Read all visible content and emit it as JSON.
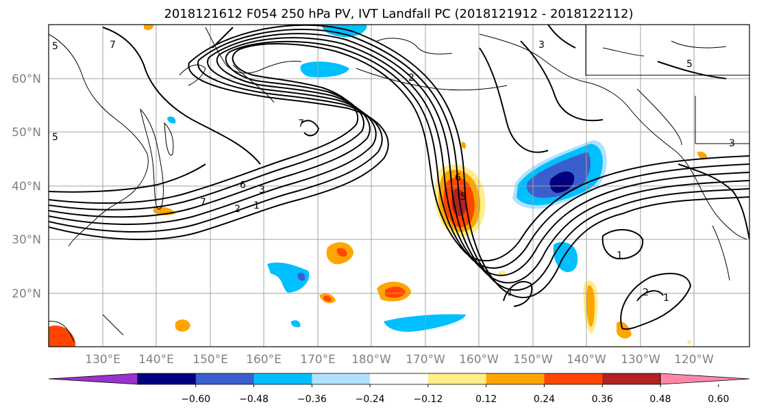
{
  "title": "2018121612 F054 250 hPa PV, IVT Landfall PC (2018121912 - 2018122112)",
  "lat_labels": [
    "60°N",
    "50°N",
    "40°N",
    "30°N",
    "20°N"
  ],
  "lon_labels": [
    "130°E",
    "140°E",
    "150°E",
    "160°E",
    "170°E",
    "180°W",
    "170°W",
    "160°W",
    "150°W",
    "140°W",
    "130°W",
    "120°W"
  ],
  "colorbar": {
    "colors": [
      "#9933cc",
      "#000080",
      "#3a5fcd",
      "#00bfff",
      "#b0e2ff",
      "#ffffff",
      "#ffee88",
      "#ffa500",
      "#ff4500",
      "#b22222",
      "#ff88aa"
    ],
    "tick_labels": [
      "−0.60",
      "−0.48",
      "−0.36",
      "−0.24",
      "−0.12",
      "0.12",
      "0.24",
      "0.36",
      "0.48",
      "0.60"
    ]
  },
  "contour_labels": [
    "7",
    "7",
    "7",
    "6",
    "3",
    "2",
    "1",
    "5",
    "3",
    "5",
    "5",
    "1",
    "2",
    "1",
    "2",
    "1",
    "3",
    "5",
    "6"
  ]
}
